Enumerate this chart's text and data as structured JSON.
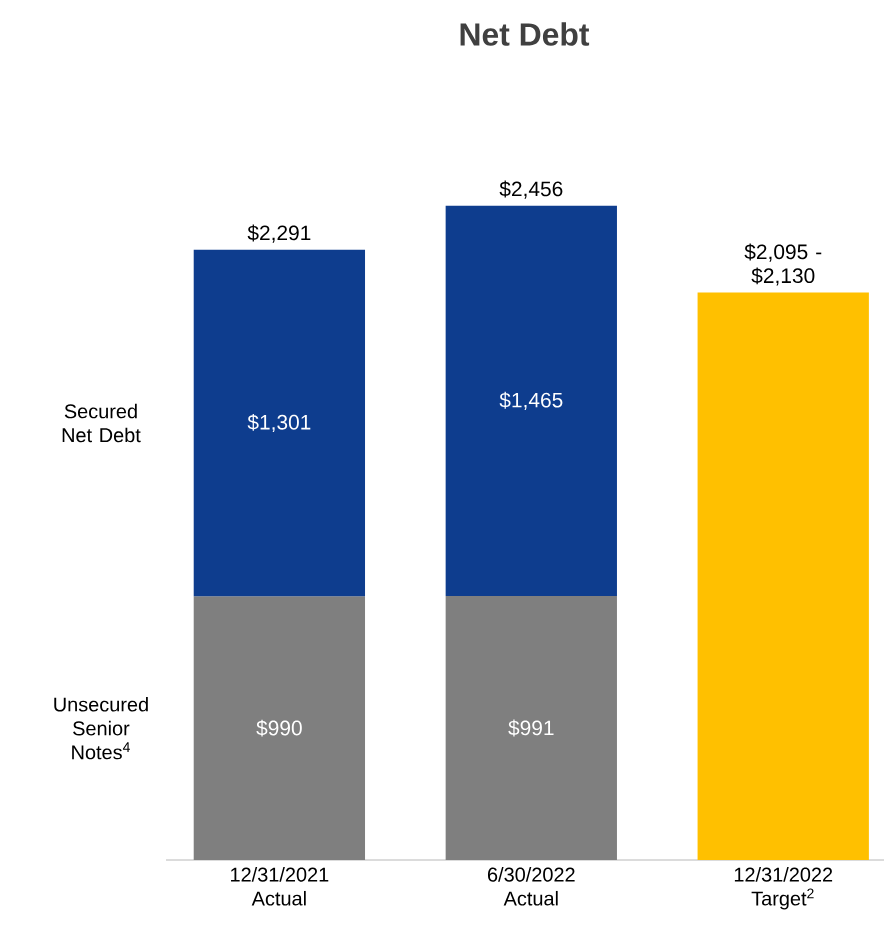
{
  "chart_data": {
    "type": "bar",
    "title": "Net Debt",
    "stacked": true,
    "categories": [
      "12/31/2021 Actual",
      "6/30/2022 Actual",
      "12/31/2022 Target$^{2}$"
    ],
    "series": [
      {
        "name": "Unsecured Senior Notes$^{4}$",
        "color": "#7f7f7f",
        "values": [
          990,
          991,
          null
        ],
        "value_labels": [
          "$990",
          "$991",
          null
        ]
      },
      {
        "name": "Secured Net Debt",
        "color": "#0e3d8e",
        "values": [
          1301,
          1465,
          null
        ],
        "value_labels": [
          "$1,301",
          "$1,465",
          null
        ]
      },
      {
        "color": "#ffc000",
        "values": [
          null,
          null,
          2130
        ]
      }
    ],
    "totals": [
      "$2,291",
      "$2,456",
      "$2,095 - $2,130"
    ],
    "legend": "left"
  }
}
